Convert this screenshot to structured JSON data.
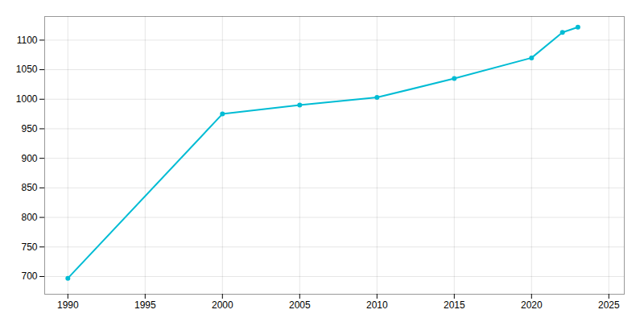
{
  "chart_data": {
    "type": "line",
    "x": [
      1990,
      2000,
      2005,
      2010,
      2015,
      2020,
      2022,
      2023
    ],
    "values": [
      697,
      975,
      990,
      1003,
      1035,
      1070,
      1113,
      1122
    ],
    "color": "#00bcd4",
    "marker": "circle",
    "line_style": "solid",
    "xlim": [
      1988.5,
      2026
    ],
    "ylim": [
      670,
      1140
    ],
    "xticks": [
      1990,
      1995,
      2000,
      2005,
      2010,
      2015,
      2020,
      2025
    ],
    "yticks": [
      700,
      750,
      800,
      850,
      900,
      950,
      1000,
      1050,
      1100
    ],
    "grid": true
  }
}
